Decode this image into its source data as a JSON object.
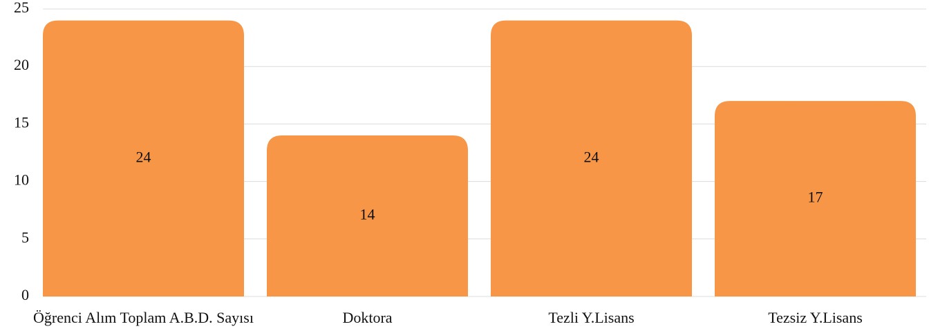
{
  "chart_data": {
    "type": "bar",
    "categories": [
      "Öğrenci Alım Toplam A.B.D. Sayısı",
      "Doktora",
      "Tezli Y.Lisans",
      "Tezsiz Y.Lisans"
    ],
    "values": [
      24,
      14,
      24,
      17
    ],
    "color": "#f79646",
    "ylim": [
      0,
      25
    ],
    "yticks": [
      0,
      5,
      10,
      15,
      20,
      25
    ],
    "grid": true
  }
}
